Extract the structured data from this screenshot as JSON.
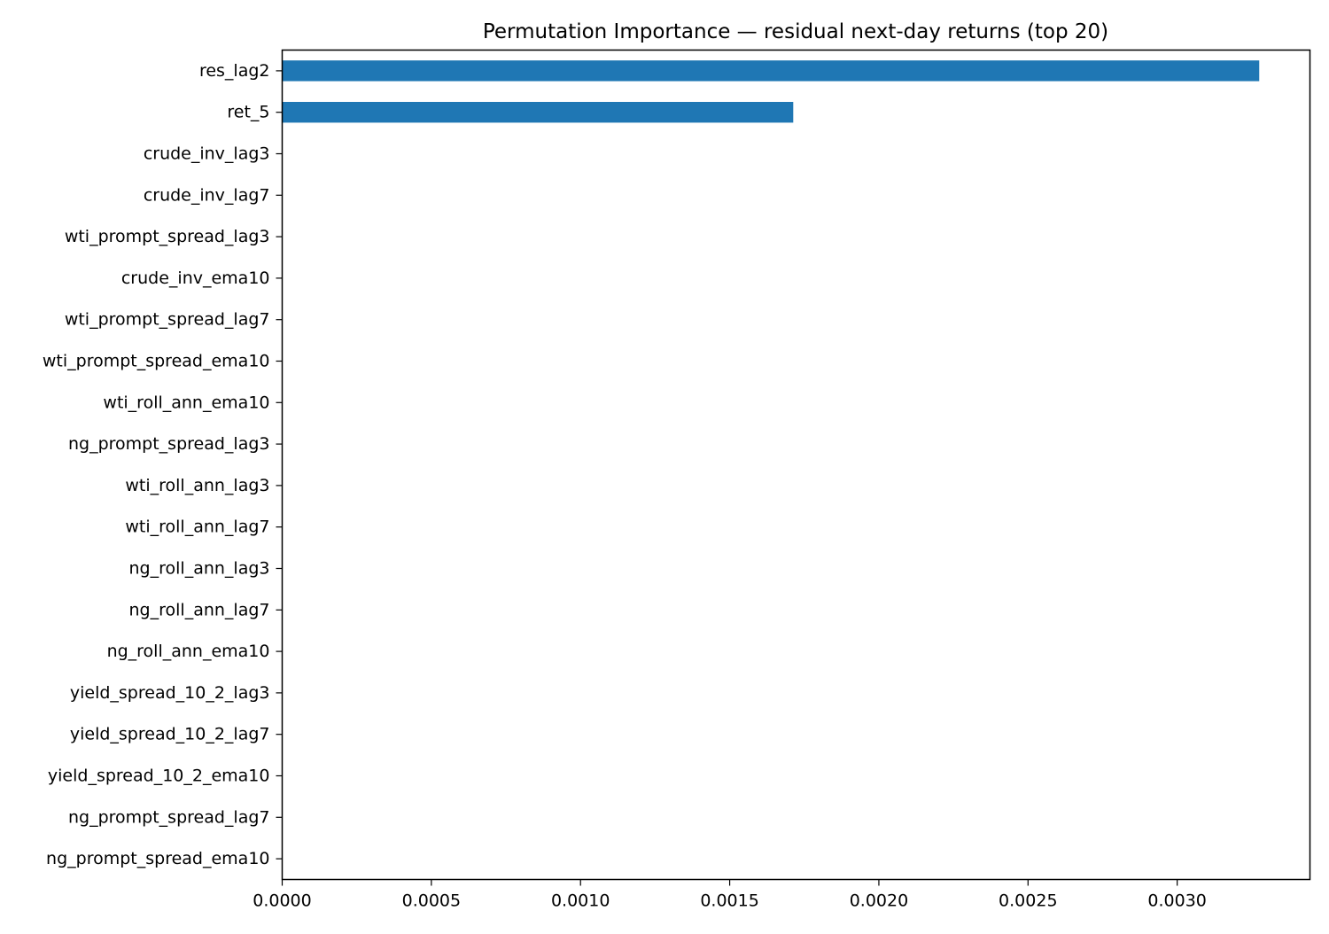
{
  "chart_data": {
    "type": "bar",
    "orientation": "horizontal",
    "title": "Permutation Importance — residual next-day returns (top 20)",
    "xlabel": "",
    "ylabel": "",
    "categories": [
      "res_lag2",
      "ret_5",
      "crude_inv_lag3",
      "crude_inv_lag7",
      "wti_prompt_spread_lag3",
      "crude_inv_ema10",
      "wti_prompt_spread_lag7",
      "wti_prompt_spread_ema10",
      "wti_roll_ann_ema10",
      "ng_prompt_spread_lag3",
      "wti_roll_ann_lag3",
      "wti_roll_ann_lag7",
      "ng_roll_ann_lag3",
      "ng_roll_ann_lag7",
      "ng_roll_ann_ema10",
      "yield_spread_10_2_lag3",
      "yield_spread_10_2_lag7",
      "yield_spread_10_2_ema10",
      "ng_prompt_spread_lag7",
      "ng_prompt_spread_ema10"
    ],
    "values": [
      0.003275,
      0.001713,
      0,
      0,
      0,
      0,
      0,
      0,
      0,
      0,
      0,
      0,
      0,
      0,
      0,
      0,
      0,
      0,
      0,
      0
    ],
    "xlim": [
      0,
      0.003445
    ],
    "xticks": [
      0,
      0.0005,
      0.001,
      0.0015,
      0.002,
      0.0025,
      0.003
    ],
    "xtick_labels": [
      "0.0000",
      "0.0005",
      "0.0010",
      "0.0015",
      "0.0020",
      "0.0025",
      "0.0030"
    ],
    "grid": false,
    "legend": "none",
    "bar_color": "#1f77b4"
  }
}
